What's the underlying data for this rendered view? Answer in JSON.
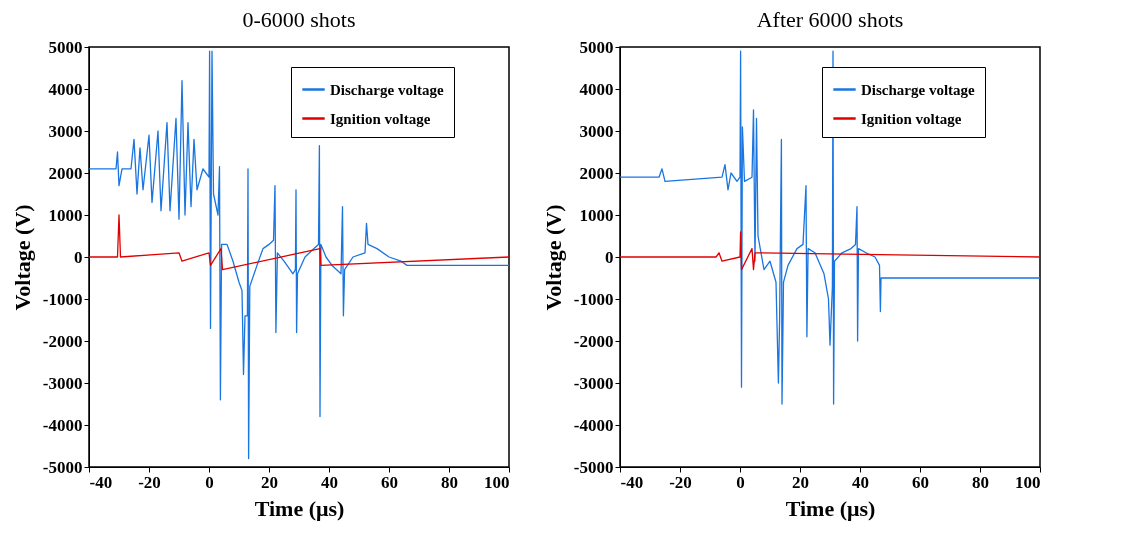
{
  "chart_data": [
    {
      "type": "line",
      "title": "0-6000 shots",
      "xlabel": "Time (μs)",
      "ylabel": "Voltage (V)",
      "xlim": [
        -40,
        100
      ],
      "ylim": [
        -5000,
        5000
      ],
      "xticks": [
        -40,
        -20,
        0,
        20,
        40,
        60,
        80,
        100
      ],
      "yticks": [
        -5000,
        -4000,
        -3000,
        -2000,
        -1000,
        0,
        1000,
        2000,
        3000,
        4000,
        5000
      ],
      "legend": "top right",
      "series": [
        {
          "name": "Discharge voltage",
          "color": "#1a75e0",
          "x": [
            -40,
            -31,
            -30.5,
            -30,
            -29,
            -26,
            -25,
            -24,
            -23,
            -22,
            -20,
            -19,
            -17,
            -16,
            -14,
            -13,
            -11,
            -10,
            -9,
            -8,
            -7,
            -6,
            -5,
            -4,
            -2,
            -1,
            0,
            0.2,
            0.5,
            1,
            1.5,
            3,
            3.5,
            3.8,
            4.2,
            6,
            8,
            10,
            11,
            11.5,
            12,
            12.8,
            13,
            13.2,
            13.6,
            16,
            18,
            20,
            21.5,
            22,
            22.3,
            22.8,
            25,
            28,
            28.8,
            29,
            29.2,
            29.5,
            32,
            35,
            36.5,
            36.8,
            37,
            37.3,
            39,
            41,
            44,
            44.5,
            44.8,
            45.2,
            48,
            52,
            52.5,
            53,
            56,
            60,
            64,
            66,
            100
          ],
          "values": [
            2100,
            2100,
            2500,
            1700,
            2100,
            2100,
            2800,
            1500,
            2600,
            1600,
            2900,
            1300,
            3000,
            1100,
            3200,
            1100,
            3300,
            900,
            4200,
            1000,
            3200,
            1200,
            2800,
            1600,
            2100,
            2000,
            1900,
            4900,
            -1700,
            4900,
            1500,
            1000,
            2150,
            -3400,
            300,
            300,
            -100,
            -600,
            -800,
            -2800,
            -1400,
            -1400,
            2100,
            -4800,
            -700,
            -200,
            200,
            300,
            400,
            1700,
            -1800,
            100,
            -100,
            -400,
            -300,
            1600,
            -1800,
            -400,
            0,
            200,
            300,
            2650,
            -3800,
            300,
            0,
            -200,
            -400,
            1200,
            -1400,
            -300,
            0,
            100,
            800,
            300,
            200,
            0,
            -100,
            -200,
            -200
          ]
        },
        {
          "name": "Ignition voltage",
          "color": "#e00000",
          "x": [
            -40,
            -30.5,
            -30,
            -29.5,
            -10,
            -9,
            0,
            0.5,
            4,
            4.5,
            37,
            37.3,
            100
          ],
          "values": [
            0,
            0,
            1000,
            0,
            100,
            -100,
            100,
            -200,
            200,
            -300,
            200,
            -200,
            0
          ]
        }
      ]
    },
    {
      "type": "line",
      "title": "After 6000 shots",
      "xlabel": "Time (μs)",
      "ylabel": "Voltage (V)",
      "xlim": [
        -40,
        100
      ],
      "ylim": [
        -5000,
        5000
      ],
      "xticks": [
        -40,
        -20,
        0,
        20,
        40,
        60,
        80,
        100
      ],
      "yticks": [
        -5000,
        -4000,
        -3000,
        -2000,
        -1000,
        0,
        1000,
        2000,
        3000,
        4000,
        5000
      ],
      "legend": "top right",
      "series": [
        {
          "name": "Discharge voltage",
          "color": "#1a75e0",
          "x": [
            -40,
            -27,
            -26,
            -25,
            -6,
            -5,
            -4,
            -3,
            -1,
            0,
            0.2,
            0.5,
            0.8,
            1.5,
            4,
            4.5,
            5,
            5.5,
            6,
            8,
            10,
            12,
            12.8,
            13.2,
            13.8,
            14,
            14.5,
            16,
            19,
            21,
            22,
            22.3,
            22.7,
            25,
            28,
            29.5,
            30,
            30.8,
            31,
            31.2,
            31.5,
            34,
            37,
            38.5,
            39,
            39.2,
            39.5,
            42,
            45,
            46.5,
            46.8,
            47,
            100
          ],
          "values": [
            1900,
            1900,
            2100,
            1800,
            1900,
            2200,
            1600,
            2000,
            1800,
            1900,
            4900,
            -3100,
            3100,
            1800,
            1900,
            3500,
            -100,
            3300,
            500,
            -300,
            -100,
            -600,
            -3000,
            -1500,
            2800,
            -3500,
            -600,
            -200,
            200,
            300,
            1700,
            -1900,
            200,
            100,
            -400,
            -1000,
            -2100,
            -700,
            4900,
            -3500,
            -100,
            100,
            200,
            300,
            1200,
            -2000,
            200,
            100,
            0,
            -200,
            -1300,
            -500,
            -500
          ]
        },
        {
          "name": "Ignition voltage",
          "color": "#e00000",
          "x": [
            -40,
            -8,
            -7,
            -6,
            0,
            0.2,
            0.5,
            4,
            4.5,
            5,
            100
          ],
          "values": [
            0,
            0,
            100,
            -100,
            0,
            600,
            -300,
            200,
            -300,
            100,
            0
          ]
        }
      ]
    }
  ]
}
